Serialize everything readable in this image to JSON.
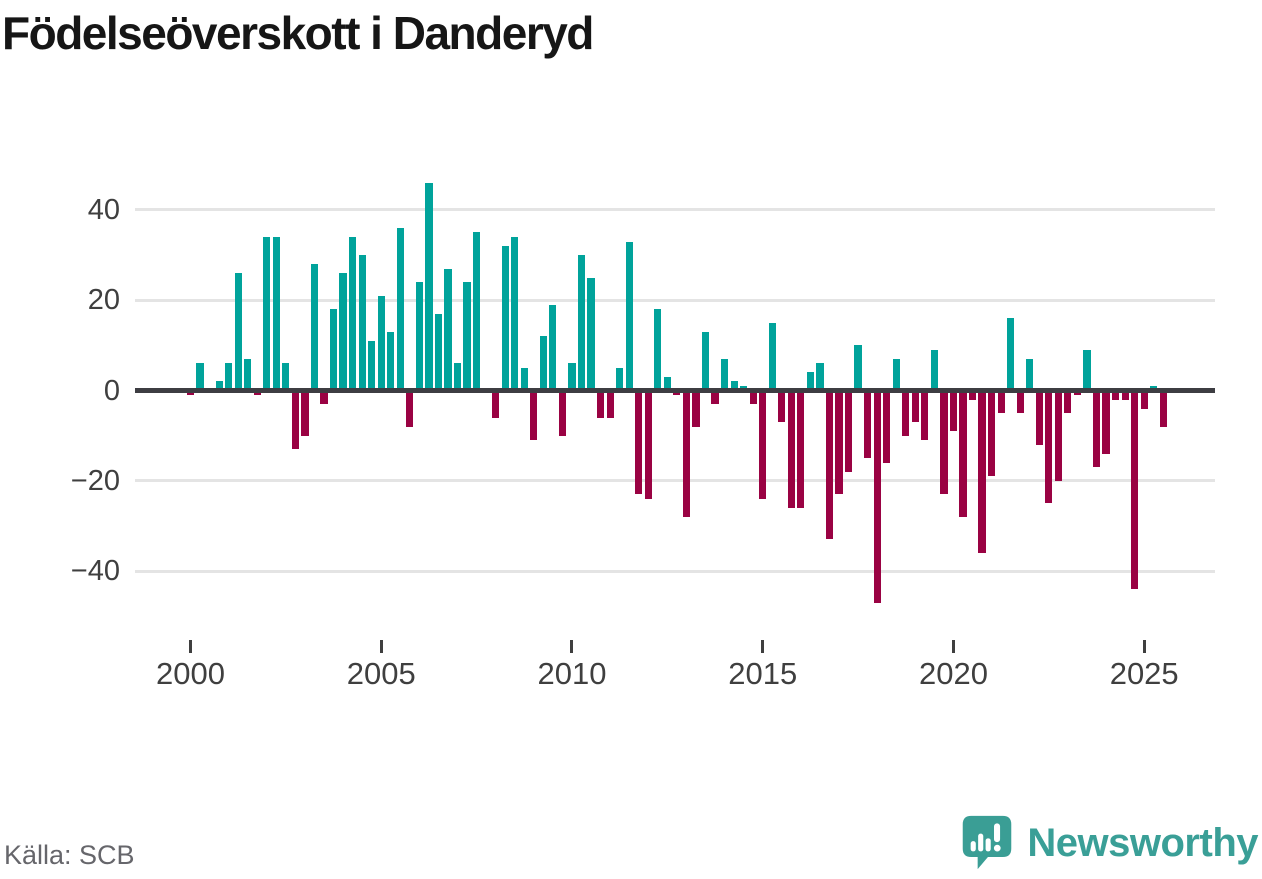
{
  "header": {
    "title": "Födelseöverskott i Danderyd"
  },
  "footer": {
    "source_label": "Källa: SCB",
    "brand": "Newsworthy"
  },
  "colors": {
    "positive": "#00a39b",
    "negative": "#9a0243",
    "gridline": "#e4e4e4",
    "axis_line": "#3d3d42",
    "tick_text": "#3f3f3f",
    "source_text": "#66666b",
    "brand_teal": "#3a9f97"
  },
  "chart_data": {
    "type": "bar",
    "title": "Födelseöverskott i Danderyd",
    "xlabel": "",
    "ylabel": "",
    "frequency": "quarterly",
    "start_year": 2000,
    "start_quarter": 1,
    "end_label": "2025Q3",
    "ylim": [
      -50,
      48
    ],
    "grid": "horizontal",
    "y_ticks": [
      40,
      20,
      0,
      -20,
      -40
    ],
    "y_tick_labels": [
      "40",
      "20",
      "0",
      "−20",
      "−40"
    ],
    "x_tick_years": [
      2000,
      2005,
      2010,
      2015,
      2020,
      2025
    ],
    "x_tick_labels": [
      "2000",
      "2005",
      "2010",
      "2015",
      "2020",
      "2025"
    ],
    "series": [
      {
        "name": "Födelseöverskott",
        "values": [
          -1,
          6,
          0,
          2,
          6,
          26,
          7,
          -1,
          34,
          34,
          6,
          -13,
          -10,
          28,
          -3,
          18,
          26,
          34,
          30,
          11,
          21,
          13,
          36,
          -8,
          24,
          46,
          17,
          27,
          6,
          24,
          35,
          0,
          -6,
          32,
          34,
          5,
          -11,
          12,
          19,
          -10,
          6,
          30,
          25,
          -6,
          -6,
          5,
          33,
          -23,
          -24,
          18,
          3,
          -1,
          -28,
          -8,
          13,
          -3,
          7,
          2,
          1,
          -3,
          -24,
          15,
          -7,
          -26,
          -26,
          4,
          6,
          -33,
          -23,
          -18,
          10,
          -15,
          -47,
          -16,
          7,
          -10,
          -7,
          -11,
          9,
          -23,
          -9,
          -28,
          -2,
          -36,
          -19,
          -5,
          16,
          -5,
          7,
          -12,
          -25,
          -20,
          -5,
          -1,
          9,
          -17,
          -14,
          -2,
          -2,
          -44,
          -4,
          1,
          -8
        ]
      }
    ]
  }
}
